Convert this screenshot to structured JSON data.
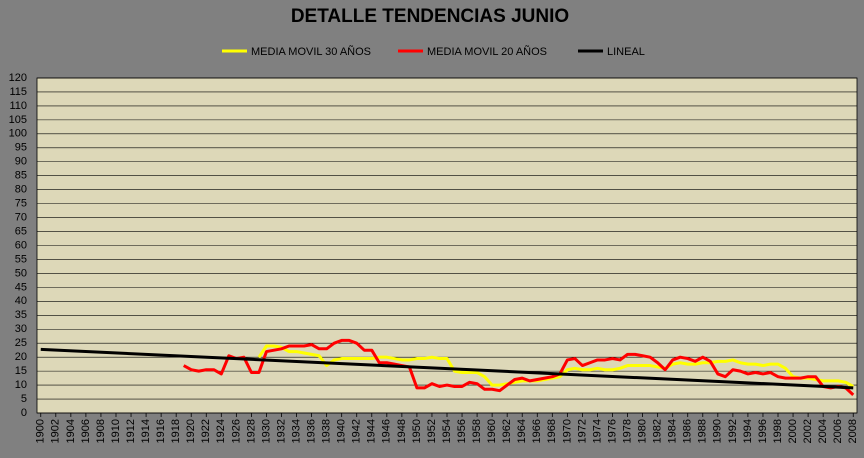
{
  "chart_data": {
    "type": "line",
    "title": "DETALLE TENDENCIAS JUNIO",
    "xlim": [
      1899.5,
      2008.5
    ],
    "xticks": [
      1900,
      1902,
      1904,
      1906,
      1908,
      1910,
      1912,
      1914,
      1916,
      1918,
      1920,
      1922,
      1924,
      1926,
      1928,
      1930,
      1932,
      1934,
      1936,
      1938,
      1940,
      1942,
      1944,
      1946,
      1948,
      1950,
      1952,
      1954,
      1956,
      1958,
      1960,
      1962,
      1964,
      1966,
      1968,
      1970,
      1972,
      1974,
      1976,
      1978,
      1980,
      1982,
      1984,
      1986,
      1988,
      1990,
      1992,
      1994,
      1996,
      1998,
      2000,
      2002,
      2004,
      2006,
      2008
    ],
    "ylim": [
      0,
      120
    ],
    "yticks": [
      0,
      5,
      10,
      15,
      20,
      25,
      30,
      35,
      40,
      45,
      50,
      55,
      60,
      65,
      70,
      75,
      80,
      85,
      90,
      95,
      100,
      105,
      110,
      115,
      120
    ],
    "grid": true,
    "legend": "top",
    "series": [
      {
        "name": "MEDIA MOVIL 30 AÑOS",
        "color": "#ffff00",
        "x": [
          1929,
          1930,
          1931,
          1932,
          1933,
          1934,
          1935,
          1936,
          1937,
          1938,
          1939,
          1940,
          1941,
          1942,
          1943,
          1944,
          1945,
          1946,
          1947,
          1948,
          1949,
          1950,
          1951,
          1952,
          1953,
          1954,
          1955,
          1956,
          1957,
          1958,
          1959,
          1960,
          1961,
          1962,
          1963,
          1964,
          1965,
          1966,
          1967,
          1968,
          1969,
          1970,
          1971,
          1972,
          1973,
          1974,
          1975,
          1976,
          1977,
          1978,
          1979,
          1980,
          1981,
          1982,
          1983,
          1984,
          1985,
          1986,
          1987,
          1988,
          1989,
          1990,
          1991,
          1992,
          1993,
          1994,
          1995,
          1996,
          1997,
          1998,
          1999,
          2000,
          2001,
          2002,
          2003,
          2004,
          2005,
          2006,
          2007,
          2008
        ],
        "values": [
          20,
          24,
          24,
          23.5,
          22,
          22,
          21.5,
          21,
          20.5,
          17,
          19,
          19.5,
          19.5,
          19.5,
          19.5,
          19.5,
          20,
          20,
          19.5,
          19,
          19,
          19.5,
          19.5,
          20,
          19.5,
          19.5,
          15,
          14.5,
          14.5,
          14.5,
          13,
          10,
          10,
          10.5,
          11,
          11.5,
          11.5,
          11.5,
          12,
          12.5,
          13,
          15.5,
          16,
          15.5,
          15.5,
          16,
          15.5,
          15.5,
          16,
          17,
          17,
          17,
          17,
          16.5,
          16,
          17.5,
          18,
          17.5,
          17.5,
          18,
          18,
          18.5,
          18.5,
          19,
          18,
          17.5,
          17.5,
          17,
          17.5,
          17.5,
          16,
          13,
          12.5,
          12.5,
          12,
          11.5,
          11.5,
          11.5,
          11,
          9.5
        ]
      },
      {
        "name": "MEDIA MOVIL 20 AÑOS",
        "color": "#ff0000",
        "x": [
          1919,
          1920,
          1921,
          1922,
          1923,
          1924,
          1925,
          1926,
          1927,
          1928,
          1929,
          1930,
          1931,
          1932,
          1933,
          1934,
          1935,
          1936,
          1937,
          1938,
          1939,
          1940,
          1941,
          1942,
          1943,
          1944,
          1945,
          1946,
          1947,
          1948,
          1949,
          1950,
          1951,
          1952,
          1953,
          1954,
          1955,
          1956,
          1957,
          1958,
          1959,
          1960,
          1961,
          1962,
          1963,
          1964,
          1965,
          1966,
          1967,
          1968,
          1969,
          1970,
          1971,
          1972,
          1973,
          1974,
          1975,
          1976,
          1977,
          1978,
          1979,
          1980,
          1981,
          1982,
          1983,
          1984,
          1985,
          1986,
          1987,
          1988,
          1989,
          1990,
          1991,
          1992,
          1993,
          1994,
          1995,
          1996,
          1997,
          1998,
          1999,
          2000,
          2001,
          2002,
          2003,
          2004,
          2005,
          2006,
          2007,
          2008
        ],
        "values": [
          17,
          15.5,
          15,
          15.5,
          15.5,
          14,
          20.5,
          19.5,
          20,
          14.5,
          14.5,
          22,
          22.5,
          23,
          24,
          24,
          24,
          24.5,
          23,
          23,
          25,
          26,
          26,
          25,
          22.5,
          22.5,
          18,
          18,
          17.5,
          17,
          16.5,
          9,
          9,
          10.5,
          9.5,
          10,
          9.5,
          9.5,
          11,
          10.5,
          8.5,
          8.5,
          8,
          10,
          12,
          12.5,
          11.5,
          12,
          12.5,
          13,
          14,
          19,
          19.5,
          17,
          18,
          19,
          19,
          19.5,
          19,
          21,
          21,
          20.5,
          20,
          18,
          15.5,
          19,
          20,
          19.5,
          18.5,
          20,
          18.5,
          14,
          13,
          15.5,
          15,
          14,
          14.5,
          14,
          14.5,
          13,
          12.5,
          12.5,
          12.5,
          13,
          13,
          9.5,
          9,
          9.5,
          9,
          6.5
        ]
      },
      {
        "name": "LINEAL",
        "color": "#000000",
        "x": [
          1900,
          2008
        ],
        "values": [
          22.8,
          9
        ]
      }
    ]
  }
}
